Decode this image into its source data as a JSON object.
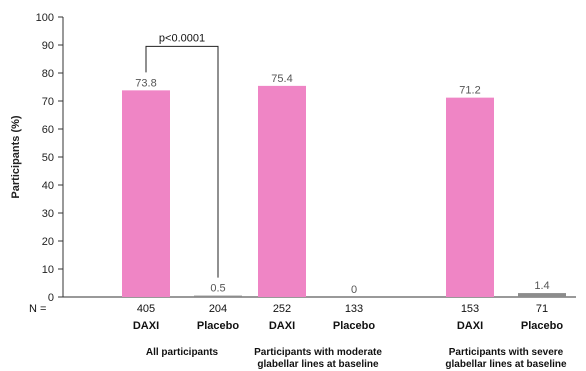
{
  "chart_data": {
    "type": "bar",
    "ylabel": "Participants (%)",
    "ylim": [
      0,
      100
    ],
    "yticks": [
      0,
      10,
      20,
      30,
      40,
      50,
      60,
      70,
      80,
      90,
      100
    ],
    "n_prefix": "N =",
    "groups": [
      {
        "label_lines": [
          "All participants"
        ],
        "bars": [
          {
            "arm": "DAXI",
            "value": 73.8,
            "value_label": "73.8",
            "n": "405",
            "color": "#ef85c5"
          },
          {
            "arm": "Placebo",
            "value": 0.5,
            "value_label": "0.5",
            "n": "204",
            "color": "#8c8c8c"
          }
        ]
      },
      {
        "label_lines": [
          "Participants with moderate",
          "glabellar lines at baseline"
        ],
        "bars": [
          {
            "arm": "DAXI",
            "value": 75.4,
            "value_label": "75.4",
            "n": "252",
            "color": "#ef85c5"
          },
          {
            "arm": "Placebo",
            "value": 0,
            "value_label": "0",
            "n": "133",
            "color": "#8c8c8c"
          }
        ]
      },
      {
        "label_lines": [
          "Participants with severe",
          "glabellar lines at baseline"
        ],
        "bars": [
          {
            "arm": "DAXI",
            "value": 71.2,
            "value_label": "71.2",
            "n": "153",
            "color": "#ef85c5"
          },
          {
            "arm": "Placebo",
            "value": 1.4,
            "value_label": "1.4",
            "n": "71",
            "color": "#8c8c8c"
          }
        ]
      }
    ],
    "annotation": {
      "text": "p<0.0001",
      "group_index": 0
    }
  }
}
